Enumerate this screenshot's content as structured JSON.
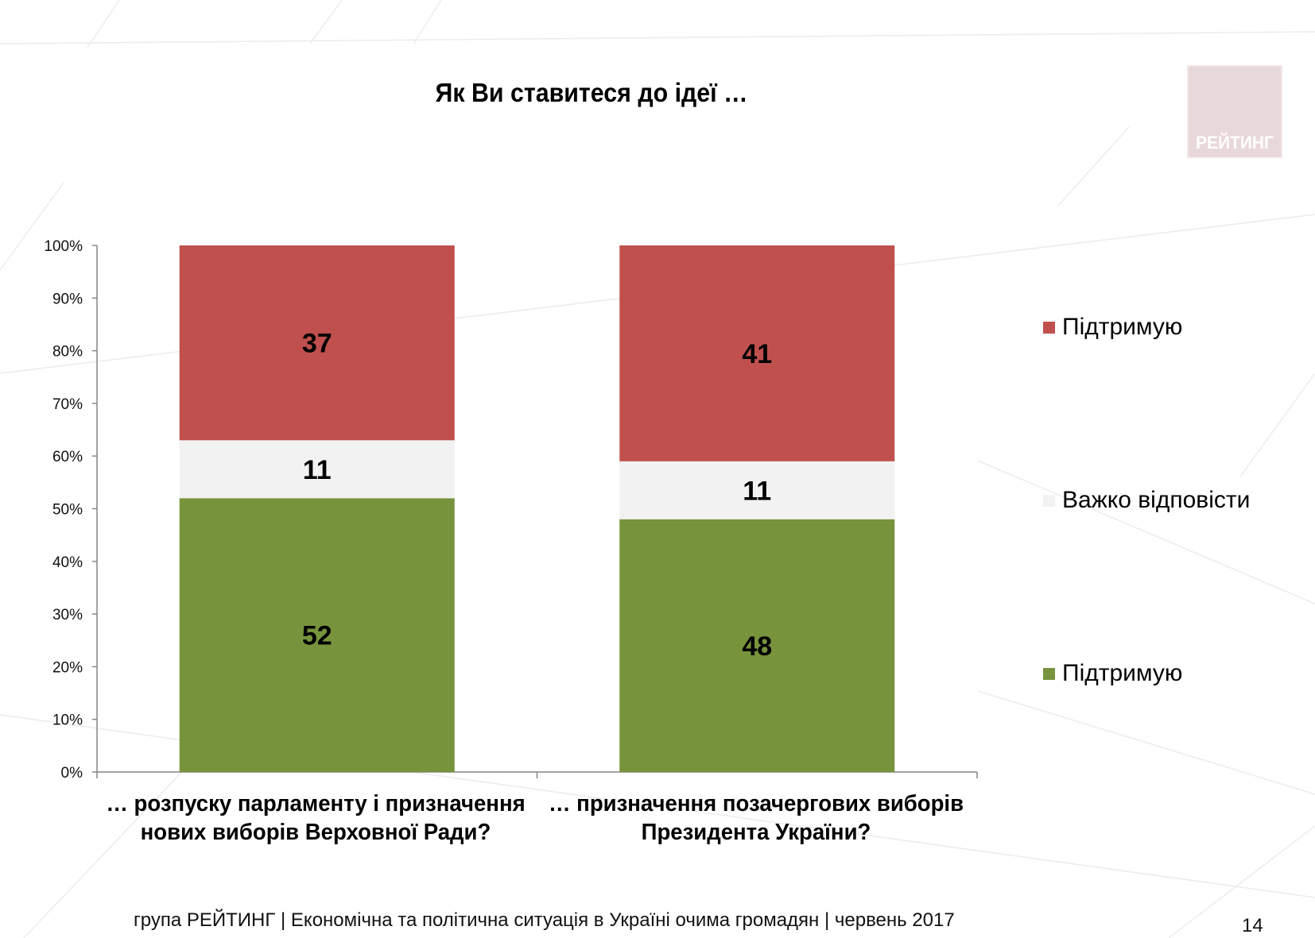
{
  "title": "Як Ви ставитеся до ідеї …",
  "logo": {
    "text": "РЕЙТИНГ"
  },
  "colors": {
    "support": "#c0504d",
    "hard_to_say": "#f2f2f2",
    "support_green": "#77933c",
    "axis": "#868686"
  },
  "chart_data": {
    "type": "bar",
    "stacked": true,
    "categories": [
      "… розпуску парламенту і призначення нових виборів Верховної Ради?",
      "… призначення позачергових виборів Президента України?"
    ],
    "category_lines": [
      [
        "… розпуску парламенту і призначення",
        "нових виборів Верховної Ради?"
      ],
      [
        "… призначення позачергових виборів",
        "Президента України?"
      ]
    ],
    "series": [
      {
        "name": "Підтримую",
        "color": "#77933c",
        "values": [
          52,
          48
        ]
      },
      {
        "name": "Важко відповісти",
        "color": "#f2f2f2",
        "values": [
          11,
          11
        ]
      },
      {
        "name": "Підтримую",
        "color": "#c0504d",
        "values": [
          37,
          41
        ]
      }
    ],
    "yticks": [
      "0%",
      "10%",
      "20%",
      "30%",
      "40%",
      "50%",
      "60%",
      "70%",
      "80%",
      "90%",
      "100%"
    ],
    "ylim": [
      0,
      100
    ],
    "legend": [
      "Підтримую",
      "Важко відповісти",
      "Підтримую"
    ],
    "legend_placement": "right",
    "grid": false
  },
  "footer": {
    "text": "група РЕЙТИНГ  |  Економічна та політична ситуація в Україні очима громадян  |  червень 2017",
    "page": "14"
  }
}
